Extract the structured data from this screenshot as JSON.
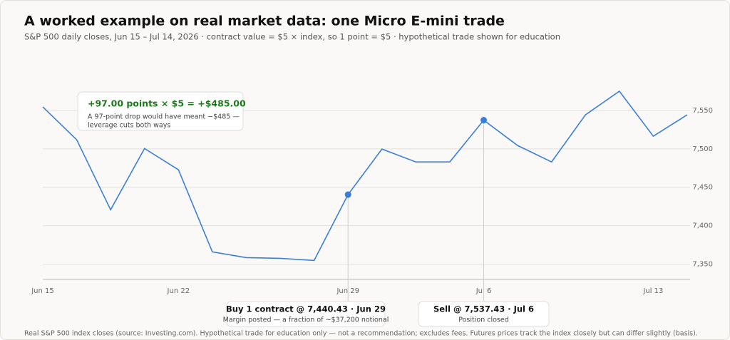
{
  "chart_data": {
    "type": "line",
    "title": "A worked example on real market data: one Micro E-mini trade",
    "subtitle": "S&P 500 daily closes, Jun 15 – Jul 14, 2026 · contract value = $5 × index, so 1 point = $5 · hypothetical trade shown for education",
    "categories": [
      "Jun 15",
      null,
      null,
      null,
      "Jun 22",
      null,
      null,
      null,
      null,
      "Jun 29",
      null,
      null,
      null,
      "Jul 6",
      null,
      null,
      null,
      null,
      "Jul 13",
      null
    ],
    "values": [
      7554.7,
      7511.9,
      7420.7,
      7500.5,
      7472.8,
      7365.8,
      7358.4,
      7357.4,
      7354.7,
      7440.43,
      7499.8,
      7483.0,
      7483.0,
      7537.43,
      7504.4,
      7483.0,
      7544.4,
      7575.1,
      7516.5,
      7544.4
    ],
    "color": "#3a7fd5",
    "ylim": [
      7330,
      7615
    ],
    "yticks": [
      {
        "value": 7350,
        "label": "7,350"
      },
      {
        "value": 7400,
        "label": "7,400"
      },
      {
        "value": 7450,
        "label": "7,450"
      },
      {
        "value": 7500,
        "label": "7,500"
      },
      {
        "value": 7550,
        "label": "7,550"
      }
    ],
    "grid": true,
    "buy": {
      "date": "Jun 29",
      "price": 7440.43,
      "label": "Buy 1 contract @ 7,440.43 · Jun 29",
      "note": "Margin posted — a fraction of ~$37,200 notional"
    },
    "sell": {
      "date": "Jul 6",
      "price": 7537.43,
      "label": "Sell @ 7,537.43 · Jul 6",
      "note": "Position closed"
    },
    "callout": {
      "title": "+97.00 points × $5 = +$485.00",
      "lines": [
        "A 97-point drop would have meant −$485 —",
        "leverage cuts both ways"
      ]
    },
    "footer": "Real S&P 500 index closes (source: Investing.com). Hypothetical trade for education only — not a recommendation; excludes fees. Futures prices track the index closely but can differ slightly (basis)."
  }
}
